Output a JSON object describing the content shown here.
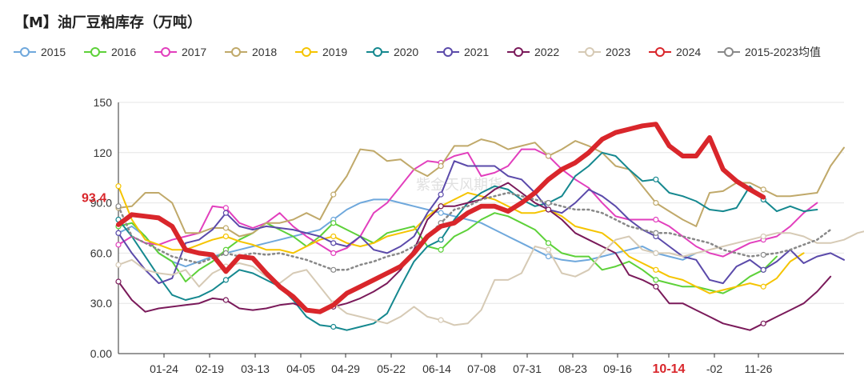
{
  "chart_data": {
    "type": "line",
    "title": "【M】油厂豆粕库存（万吨）",
    "y_ticks": [
      "0.00",
      "30.0",
      "60.0",
      "90.0",
      "120",
      "150"
    ],
    "ylim": [
      0,
      150
    ],
    "x_ticks": [
      "01-24",
      "02-19",
      "03-13",
      "04-05",
      "04-29",
      "05-22",
      "06-14",
      "07-08",
      "07-31",
      "08-23",
      "09-16",
      "10-14",
      "-02",
      "11-26"
    ],
    "highlight_tick": "10-14",
    "last_value_label": "93.4",
    "watermark": "紫金天风期货",
    "series": [
      {
        "name": "2015",
        "color": "#6fa8dc",
        "values": [
          72,
          76,
          70,
          60,
          55,
          52,
          55,
          58,
          60,
          62,
          64,
          66,
          68,
          70,
          72,
          74,
          80,
          86,
          90,
          92,
          92,
          90,
          88,
          86,
          84,
          82,
          80,
          78,
          74,
          70,
          66,
          62,
          58,
          56,
          55,
          56,
          58,
          60,
          62,
          64,
          60,
          58,
          56,
          60
        ]
      },
      {
        "name": "2016",
        "color": "#5dd139",
        "values": [
          76,
          78,
          70,
          60,
          55,
          43,
          50,
          55,
          62,
          68,
          72,
          78,
          74,
          70,
          64,
          70,
          78,
          74,
          70,
          66,
          72,
          74,
          76,
          64,
          62,
          70,
          74,
          80,
          84,
          82,
          78,
          74,
          66,
          60,
          58,
          58,
          50,
          52,
          55,
          50,
          44,
          42,
          40,
          40,
          38,
          36,
          40,
          46,
          50,
          58
        ]
      },
      {
        "name": "2017",
        "color": "#e23fbd",
        "values": [
          65,
          70,
          66,
          65,
          68,
          70,
          72,
          88,
          87,
          78,
          75,
          78,
          84,
          76,
          70,
          65,
          60,
          63,
          70,
          84,
          90,
          100,
          110,
          115,
          114,
          118,
          120,
          106,
          108,
          112,
          122,
          122,
          118,
          110,
          104,
          99,
          90,
          82,
          80,
          80,
          80,
          76,
          70,
          64,
          60,
          58,
          62,
          66,
          68,
          70,
          76,
          84,
          90
        ]
      },
      {
        "name": "2018",
        "color": "#c0a96a",
        "values": [
          87,
          88,
          96,
          96,
          90,
          72,
          72,
          75,
          75,
          70,
          72,
          78,
          78,
          80,
          84,
          80,
          95,
          106,
          122,
          121,
          115,
          116,
          110,
          106,
          112,
          124,
          124,
          128,
          126,
          122,
          124,
          126,
          118,
          122,
          127,
          124,
          120,
          112,
          110,
          100,
          90,
          85,
          80,
          76,
          96,
          97,
          102,
          102,
          98,
          94,
          94,
          95,
          96,
          112,
          123
        ]
      },
      {
        "name": "2019",
        "color": "#f5c400",
        "values": [
          100,
          80,
          68,
          65,
          62,
          62,
          65,
          68,
          70,
          67,
          65,
          62,
          62,
          60,
          64,
          68,
          70,
          66,
          64,
          66,
          70,
          72,
          74,
          82,
          88,
          92,
          96,
          94,
          92,
          88,
          84,
          84,
          86,
          82,
          76,
          74,
          72,
          66,
          58,
          54,
          50,
          46,
          44,
          40,
          36,
          38,
          40,
          42,
          40,
          45,
          55,
          60
        ]
      },
      {
        "name": "2020",
        "color": "#15888f",
        "values": [
          80,
          70,
          58,
          46,
          35,
          32,
          34,
          38,
          44,
          50,
          48,
          44,
          40,
          32,
          22,
          17,
          16,
          14,
          16,
          18,
          24,
          40,
          55,
          64,
          68,
          80,
          90,
          96,
          100,
          98,
          92,
          88,
          90,
          94,
          106,
          112,
          120,
          118,
          110,
          103,
          104,
          96,
          94,
          91,
          86,
          85,
          87,
          100,
          92,
          85,
          88,
          85,
          86
        ]
      },
      {
        "name": "2021",
        "color": "#5b4aaa",
        "values": [
          72,
          60,
          50,
          42,
          45,
          66,
          68,
          74,
          84,
          76,
          74,
          76,
          75,
          74,
          72,
          70,
          66,
          64,
          70,
          62,
          60,
          64,
          70,
          84,
          95,
          115,
          112,
          112,
          112,
          106,
          104,
          96,
          86,
          84,
          90,
          98,
          94,
          88,
          80,
          74,
          70,
          64,
          58,
          56,
          44,
          42,
          52,
          56,
          50,
          55,
          62,
          54,
          58,
          60,
          56
        ]
      },
      {
        "name": "2022",
        "color": "#7a1a5a",
        "values": [
          43,
          32,
          25,
          27,
          28,
          29,
          30,
          33,
          32,
          27,
          26,
          27,
          29,
          30,
          27,
          25,
          28,
          30,
          33,
          37,
          42,
          50,
          62,
          80,
          88,
          88,
          90,
          92,
          98,
          102,
          96,
          90,
          86,
          80,
          72,
          68,
          64,
          60,
          47,
          44,
          40,
          30,
          30,
          26,
          22,
          18,
          16,
          14,
          18,
          22,
          26,
          30,
          37,
          46
        ]
      },
      {
        "name": "2023",
        "color": "#d6cab5",
        "values": [
          53,
          56,
          50,
          48,
          47,
          50,
          40,
          48,
          52,
          54,
          52,
          46,
          42,
          48,
          50,
          40,
          30,
          24,
          22,
          20,
          18,
          22,
          28,
          22,
          20,
          17,
          18,
          26,
          44,
          44,
          48,
          64,
          62,
          48,
          46,
          50,
          60,
          68,
          70,
          62,
          60,
          60,
          58,
          60,
          62,
          64,
          66,
          68,
          70,
          72,
          72,
          70,
          66,
          66,
          68,
          72,
          74
        ]
      },
      {
        "name": "2024",
        "color": "#d9262b",
        "values": [
          77,
          83,
          82,
          81,
          76,
          62,
          60,
          59,
          49,
          58,
          57,
          48,
          40,
          34,
          26,
          25,
          29,
          36,
          40,
          44,
          48,
          52,
          60,
          70,
          76,
          78,
          84,
          88,
          88,
          85,
          90,
          96,
          104,
          110,
          114,
          120,
          128,
          132,
          134,
          136,
          137,
          124,
          118,
          118,
          129,
          110,
          103,
          98,
          93.4
        ]
      },
      {
        "name": "2015-2023均值",
        "color": "#888888",
        "values": [
          88,
          70,
          66,
          62,
          58,
          56,
          54,
          57,
          60,
          58,
          60,
          59,
          60,
          58,
          56,
          53,
          50,
          50,
          53,
          55,
          58,
          60,
          64,
          70,
          78,
          86,
          88,
          92,
          94,
          96,
          94,
          92,
          90,
          88,
          86,
          86,
          84,
          80,
          76,
          74,
          72,
          72,
          70,
          68,
          66,
          62,
          60,
          58,
          59,
          60,
          62,
          65,
          68,
          74
        ]
      }
    ]
  }
}
